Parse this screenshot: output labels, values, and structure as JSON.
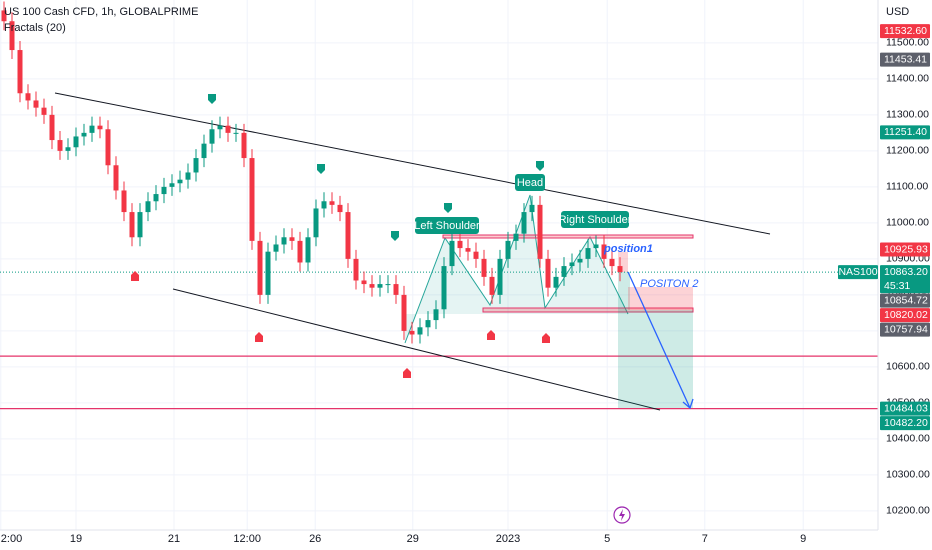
{
  "chart_data": {
    "type": "candlestick",
    "title": "US 100 Cash CFD, 1h, GLOBALPRIME",
    "indicator": "Fractals (20)",
    "currency": "USD",
    "symbol": "NAS100",
    "countdown": "45:31",
    "up_color": "#089981",
    "down_color": "#f23645",
    "grid": true,
    "x": [
      null,
      null,
      null,
      null,
      null,
      null,
      null,
      null,
      null,
      null,
      null,
      null,
      null,
      null,
      null,
      null,
      null,
      null,
      null,
      null,
      null,
      null,
      null,
      null,
      null,
      null,
      null,
      null,
      null,
      null,
      null,
      null,
      null,
      null,
      null,
      null,
      null,
      null,
      null,
      null,
      null,
      null,
      null,
      null,
      null,
      null,
      null,
      null,
      null,
      null,
      null,
      null,
      null,
      null,
      null,
      null,
      null,
      null,
      null,
      null,
      null,
      null,
      null,
      null,
      null,
      null,
      null,
      null,
      null,
      null,
      null,
      null,
      null,
      null,
      null,
      null,
      null,
      null
    ],
    "open": [
      11590,
      11560,
      11480,
      11360,
      11340,
      11320,
      11300,
      11230,
      11200,
      11210,
      11240,
      11250,
      11270,
      11260,
      11160,
      11090,
      11030,
      10960,
      11030,
      11060,
      11080,
      11100,
      11110,
      11120,
      11140,
      11180,
      11220,
      11260,
      11270,
      11250,
      11250,
      11180,
      10950,
      10800,
      10920,
      10940,
      10960,
      10950,
      10890,
      10960,
      11040,
      11060,
      11050,
      11030,
      10900,
      10840,
      10830,
      10820,
      10830,
      10830,
      10800,
      10700,
      10690,
      10710,
      10730,
      10760,
      10880,
      10950,
      10930,
      10920,
      10900,
      10850,
      10800,
      10900,
      10950,
      10970,
      11030,
      11050,
      10900,
      10820,
      10850,
      10880,
      10890,
      10900,
      10930,
      10940,
      10900,
      10880
    ],
    "high": [
      11615,
      11585,
      11505,
      11385,
      11365,
      11345,
      11325,
      11255,
      11235,
      11265,
      11275,
      11295,
      11295,
      11285,
      11185,
      11115,
      11055,
      11055,
      11085,
      11105,
      11125,
      11135,
      11145,
      11165,
      11205,
      11245,
      11285,
      11295,
      11295,
      11275,
      11275,
      11205,
      10975,
      10945,
      10965,
      10985,
      10985,
      10975,
      10985,
      11065,
      11085,
      11085,
      11075,
      11055,
      10925,
      10865,
      10855,
      10855,
      10855,
      10855,
      10825,
      10725,
      10735,
      10755,
      10785,
      10905,
      10975,
      10975,
      10955,
      10945,
      10925,
      10875,
      10925,
      10975,
      10995,
      11055,
      11075,
      11075,
      10925,
      10875,
      10905,
      10915,
      10925,
      10955,
      10965,
      10965,
      10925,
      10905
    ],
    "low": [
      11535,
      11455,
      11335,
      11315,
      11295,
      11275,
      11205,
      11175,
      11175,
      11185,
      11215,
      11225,
      11235,
      11135,
      11065,
      11005,
      10935,
      10935,
      11005,
      11035,
      11055,
      11075,
      11085,
      11095,
      11115,
      11155,
      11195,
      11235,
      11225,
      11225,
      11155,
      10925,
      10775,
      10775,
      10895,
      10915,
      10925,
      10865,
      10865,
      10935,
      11015,
      11025,
      11005,
      10875,
      10815,
      10805,
      10795,
      10795,
      10805,
      10775,
      10675,
      10665,
      10665,
      10685,
      10705,
      10735,
      10855,
      10905,
      10895,
      10875,
      10825,
      10775,
      10775,
      10875,
      10925,
      10945,
      11005,
      10875,
      10795,
      10795,
      10825,
      10855,
      10865,
      10875,
      10905,
      10875,
      10855,
      10838
    ],
    "close": [
      11560,
      11480,
      11360,
      11340,
      11320,
      11300,
      11230,
      11200,
      11210,
      11240,
      11250,
      11270,
      11260,
      11160,
      11090,
      11030,
      10960,
      11030,
      11060,
      11080,
      11100,
      11110,
      11120,
      11140,
      11180,
      11220,
      11260,
      11270,
      11250,
      11250,
      11180,
      10950,
      10800,
      10920,
      10940,
      10960,
      10950,
      10890,
      10960,
      11040,
      11060,
      11050,
      11030,
      10900,
      10840,
      10830,
      10820,
      10830,
      10830,
      10800,
      10700,
      10690,
      10710,
      10730,
      10760,
      10880,
      10950,
      10930,
      10920,
      10900,
      10850,
      10800,
      10900,
      10950,
      10970,
      11030,
      11050,
      10900,
      10820,
      10850,
      10880,
      10890,
      10900,
      10930,
      10940,
      10900,
      10880,
      10863.2
    ],
    "xlim": [
      -0.5,
      109.25
    ],
    "xticks": [
      {
        "value": -0.4,
        "label": "2:00"
      },
      {
        "value": 9,
        "label": "19"
      },
      {
        "value": 21.25,
        "label": "21"
      },
      {
        "value": 30.4,
        "label": "12:00"
      },
      {
        "value": 38.9,
        "label": "26"
      },
      {
        "value": 51.1,
        "label": "29"
      },
      {
        "value": 63,
        "label": "2023"
      },
      {
        "value": 75.4,
        "label": "5"
      },
      {
        "value": 87.6,
        "label": "7"
      },
      {
        "value": 99.9,
        "label": "9"
      }
    ],
    "ylim": [
      10147,
      11619
    ],
    "yticks": [
      {
        "value": 11500,
        "label": "11500.00"
      },
      {
        "value": 11400,
        "label": "11400.00"
      },
      {
        "value": 11300,
        "label": "11300.00"
      },
      {
        "value": 11200,
        "label": "11200.00"
      },
      {
        "value": 11100,
        "label": "11100.00"
      },
      {
        "value": 11000,
        "label": "11000.00"
      },
      {
        "value": 10900,
        "label": "10900.00"
      },
      {
        "value": 10800,
        "label": "10800.00"
      },
      {
        "value": 10700,
        "label": "10700.00"
      },
      {
        "value": 10600,
        "label": "10600.00"
      },
      {
        "value": 10500,
        "label": "10500.00"
      },
      {
        "value": 10400,
        "label": "10400.00"
      },
      {
        "value": 10300,
        "label": "10300.00"
      },
      {
        "value": 10200,
        "label": "10200.00"
      }
    ],
    "current_price": {
      "value": 10863.2,
      "label": "10863.20",
      "color": "#089981"
    },
    "price_labels": [
      {
        "value": 11532.6,
        "label": "11532.60",
        "color": "#f23645"
      },
      {
        "value": 11453.41,
        "label": "11453.41",
        "color": "#5d606b"
      },
      {
        "value": 11251.4,
        "label": "11251.40",
        "color": "#089981"
      },
      {
        "value": 10925.93,
        "label": "10925.93",
        "color": "#f23645"
      },
      {
        "value": 10854.72,
        "label": "10854.72",
        "color": "#5d606b"
      },
      {
        "value": 10820.02,
        "label": "10820.02",
        "color": "#f23645"
      },
      {
        "value": 10757.94,
        "label": "10757.94",
        "color": "#5d606b"
      },
      {
        "value": 10484.03,
        "label": "10484.03",
        "color": "#089981"
      },
      {
        "value": 10482.2,
        "label": "10482.20",
        "color": "#089981"
      }
    ],
    "levels": [
      10630,
      10484.03
    ],
    "level_color": "#e5336a",
    "annotations": {
      "left_shoulder": "Left Shoulder",
      "head": "Head",
      "right_shoulder": "Right Shoulder",
      "position1": "position1",
      "position2": "POSITON 2"
    }
  }
}
